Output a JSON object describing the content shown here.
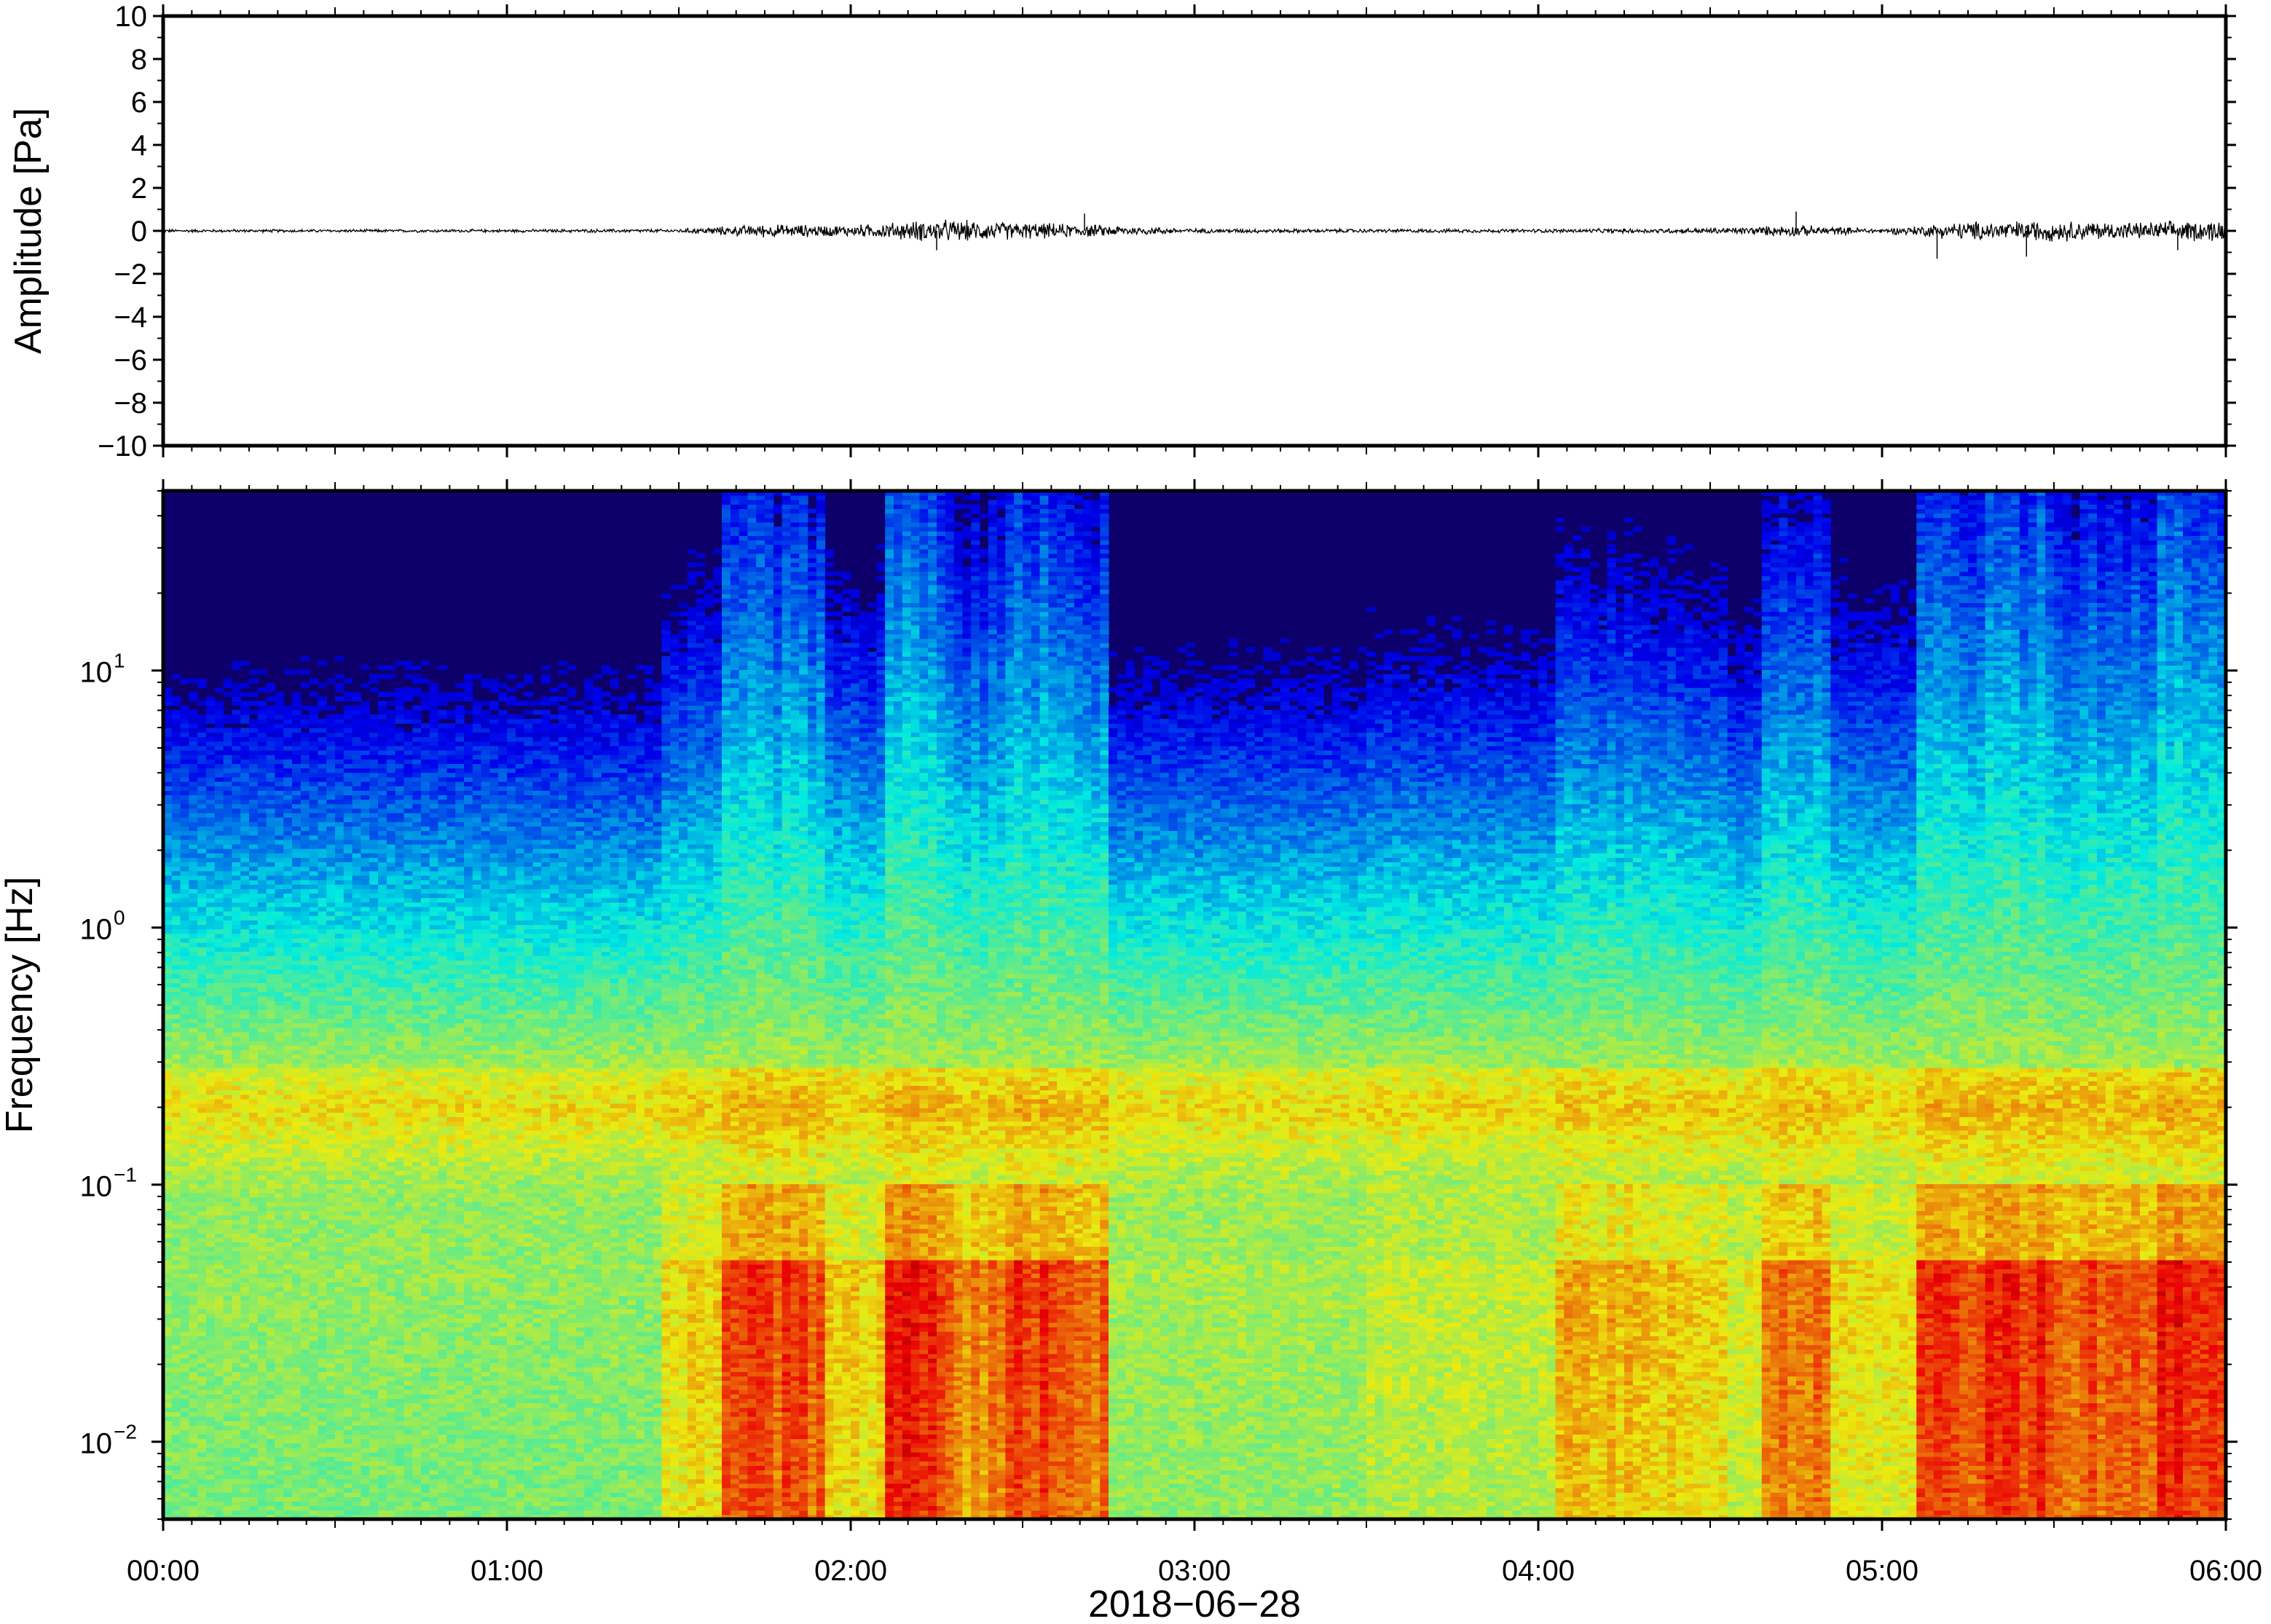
{
  "chart_data": [
    {
      "type": "line",
      "panel": "waveform",
      "ylabel": "Amplitude [Pa]",
      "ylim": [
        -10,
        10
      ],
      "yticks": [
        10,
        8,
        6,
        4,
        2,
        0,
        -2,
        -4,
        -6,
        -8,
        -10
      ],
      "ytick_labels": [
        "10",
        "8",
        "6",
        "4",
        "2",
        "0",
        "−2",
        "−4",
        "−6",
        "−8",
        "−10"
      ],
      "xlim_hours": [
        0,
        6
      ],
      "series": [
        {
          "x_hours": [
            0,
            0.5,
            1.0,
            1.5,
            1.75,
            2.0,
            2.25,
            2.5,
            2.75,
            3.0,
            3.5,
            4.0,
            4.25,
            4.5,
            4.75,
            5.0,
            5.25,
            5.5,
            5.75,
            6.0
          ],
          "envelope_pa": [
            0.08,
            0.08,
            0.08,
            0.1,
            0.35,
            0.3,
            0.6,
            0.45,
            0.3,
            0.12,
            0.1,
            0.1,
            0.12,
            0.15,
            0.3,
            0.12,
            0.5,
            0.55,
            0.45,
            0.6
          ]
        }
      ],
      "spikes": [
        {
          "x_hours": 2.25,
          "value": -0.9
        },
        {
          "x_hours": 2.68,
          "value": 0.8
        },
        {
          "x_hours": 4.75,
          "value": 0.9
        },
        {
          "x_hours": 5.16,
          "value": -1.3
        },
        {
          "x_hours": 5.42,
          "value": -1.2
        },
        {
          "x_hours": 5.86,
          "value": -0.9
        }
      ]
    },
    {
      "type": "heatmap",
      "panel": "spectrogram",
      "ylabel": "Frequency [Hz]",
      "yscale": "log",
      "ylim_hz": [
        0.005,
        50
      ],
      "yticks_hz": [
        0.01,
        0.1,
        1,
        10
      ],
      "ytick_base": "10",
      "ytick_exponents": [
        "−2",
        "−1",
        "0",
        "1"
      ],
      "xlim_hours": [
        0,
        6
      ],
      "xtick_labels": [
        "00:00",
        "01:00",
        "02:00",
        "03:00",
        "04:00",
        "05:00",
        "06:00"
      ],
      "xlabel": "2018−06−28",
      "colormap": "jet",
      "colors": {
        "background": "#0d006b",
        "axis": "#000000"
      },
      "activity_blocks": [
        {
          "start": 0.0,
          "end": 1.45,
          "level": 0.05
        },
        {
          "start": 1.45,
          "end": 1.62,
          "level": 0.45
        },
        {
          "start": 1.62,
          "end": 1.93,
          "level": 0.9
        },
        {
          "start": 1.93,
          "end": 2.1,
          "level": 0.45
        },
        {
          "start": 2.1,
          "end": 2.3,
          "level": 1.0
        },
        {
          "start": 2.3,
          "end": 2.45,
          "level": 0.75
        },
        {
          "start": 2.45,
          "end": 2.6,
          "level": 0.95
        },
        {
          "start": 2.6,
          "end": 2.75,
          "level": 0.8
        },
        {
          "start": 2.75,
          "end": 3.5,
          "level": 0.12
        },
        {
          "start": 3.5,
          "end": 4.05,
          "level": 0.22
        },
        {
          "start": 4.05,
          "end": 4.3,
          "level": 0.55
        },
        {
          "start": 4.3,
          "end": 4.55,
          "level": 0.5
        },
        {
          "start": 4.55,
          "end": 4.65,
          "level": 0.3
        },
        {
          "start": 4.65,
          "end": 4.85,
          "level": 0.85
        },
        {
          "start": 4.85,
          "end": 5.1,
          "level": 0.4
        },
        {
          "start": 5.1,
          "end": 5.5,
          "level": 1.0
        },
        {
          "start": 5.5,
          "end": 5.8,
          "level": 0.85
        },
        {
          "start": 5.8,
          "end": 6.0,
          "level": 1.0
        }
      ]
    }
  ]
}
